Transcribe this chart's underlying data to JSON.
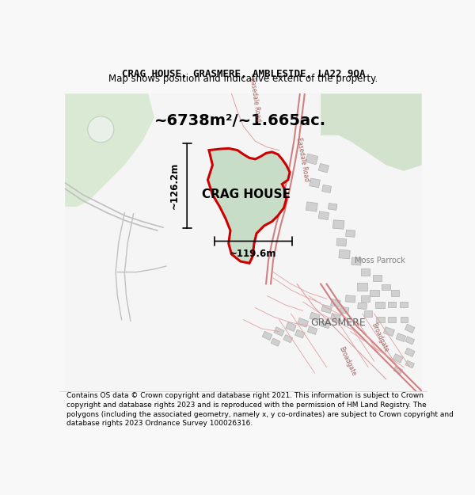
{
  "title": "CRAG HOUSE, GRASMERE, AMBLESIDE, LA22 9QA",
  "subtitle": "Map shows position and indicative extent of the property.",
  "area_label": "~6738m²/~1.665ac.",
  "property_label": "CRAG HOUSE",
  "width_label": "~119.6m",
  "height_label": "~126.2m",
  "grasmere_label": "GRASMERE",
  "moss_parrock_label": "Moss Parrock",
  "footer": "Contains OS data © Crown copyright and database right 2021. This information is subject to Crown copyright and database rights 2023 and is reproduced with the permission of HM Land Registry. The polygons (including the associated geometry, namely x, y co-ordinates) are subject to Crown copyright and database rights 2023 Ordnance Survey 100026316.",
  "bg_color": "#f8f8f8",
  "map_bg": "#ffffff",
  "property_fill": "#c8ddc8",
  "property_edge": "#cc0000",
  "road_color": "#e8b8b8",
  "building_fill": "#d8d8d8",
  "building_edge": "#b8b8b8",
  "green_area": "#d8e8d0",
  "title_fontsize": 9,
  "subtitle_fontsize": 8.5,
  "area_fontsize": 14,
  "label_fontsize": 11,
  "footer_fontsize": 6.5
}
